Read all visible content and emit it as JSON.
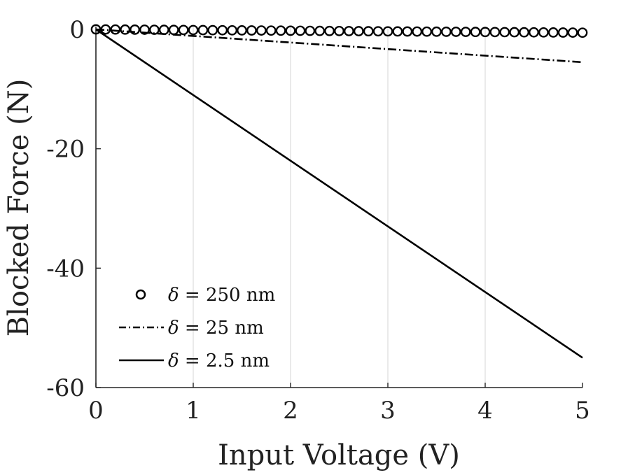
{
  "chart_data": {
    "type": "line",
    "title": "",
    "xlabel": "Input Voltage (V)",
    "ylabel": "Blocked Force (N)",
    "xlim": [
      0,
      5
    ],
    "ylim": [
      -60,
      0
    ],
    "xticks": [
      0,
      1,
      2,
      3,
      4,
      5
    ],
    "xtick_labels": [
      "0",
      "1",
      "2",
      "3",
      "4",
      "5"
    ],
    "yticks": [
      0,
      -20,
      -40,
      -60
    ],
    "ytick_labels": [
      "0",
      "-20",
      "-40",
      "-60"
    ],
    "grid": "vertical",
    "legend_position": "bottom-left",
    "series": [
      {
        "name": "δ = 250 nm",
        "legend_symbol": "δ",
        "legend_rest": " = 250 nm",
        "style": "circles",
        "color": "#000000",
        "x": [
          0.0,
          0.1,
          0.2,
          0.3,
          0.4,
          0.5,
          0.6,
          0.7,
          0.8,
          0.9,
          1.0,
          1.1,
          1.2,
          1.3,
          1.4,
          1.5,
          1.6,
          1.7,
          1.8,
          1.9,
          2.0,
          2.1,
          2.2,
          2.3,
          2.4,
          2.5,
          2.6,
          2.7,
          2.8,
          2.9,
          3.0,
          3.1,
          3.2,
          3.3,
          3.4,
          3.5,
          3.6,
          3.7,
          3.8,
          3.9,
          4.0,
          4.1,
          4.2,
          4.3,
          4.4,
          4.5,
          4.6,
          4.7,
          4.8,
          4.9,
          5.0
        ],
        "y": [
          0.0,
          -0.011,
          -0.022,
          -0.033,
          -0.044,
          -0.055,
          -0.066,
          -0.077,
          -0.088,
          -0.099,
          -0.11,
          -0.121,
          -0.132,
          -0.143,
          -0.154,
          -0.165,
          -0.176,
          -0.187,
          -0.198,
          -0.209,
          -0.22,
          -0.231,
          -0.242,
          -0.253,
          -0.264,
          -0.275,
          -0.286,
          -0.297,
          -0.308,
          -0.319,
          -0.33,
          -0.341,
          -0.352,
          -0.363,
          -0.374,
          -0.385,
          -0.396,
          -0.407,
          -0.418,
          -0.429,
          -0.44,
          -0.451,
          -0.462,
          -0.473,
          -0.484,
          -0.495,
          -0.506,
          -0.517,
          -0.528,
          -0.539,
          -0.55
        ]
      },
      {
        "name": "δ = 25 nm",
        "legend_symbol": "δ",
        "legend_rest": " = 25 nm",
        "style": "dash-dot",
        "color": "#000000",
        "x": [
          0,
          5
        ],
        "y": [
          0,
          -5.5
        ]
      },
      {
        "name": "δ = 2.5 nm",
        "legend_symbol": "δ",
        "legend_rest": " = 2.5 nm",
        "style": "solid",
        "color": "#000000",
        "x": [
          0,
          5
        ],
        "y": [
          0,
          -55
        ]
      }
    ]
  }
}
